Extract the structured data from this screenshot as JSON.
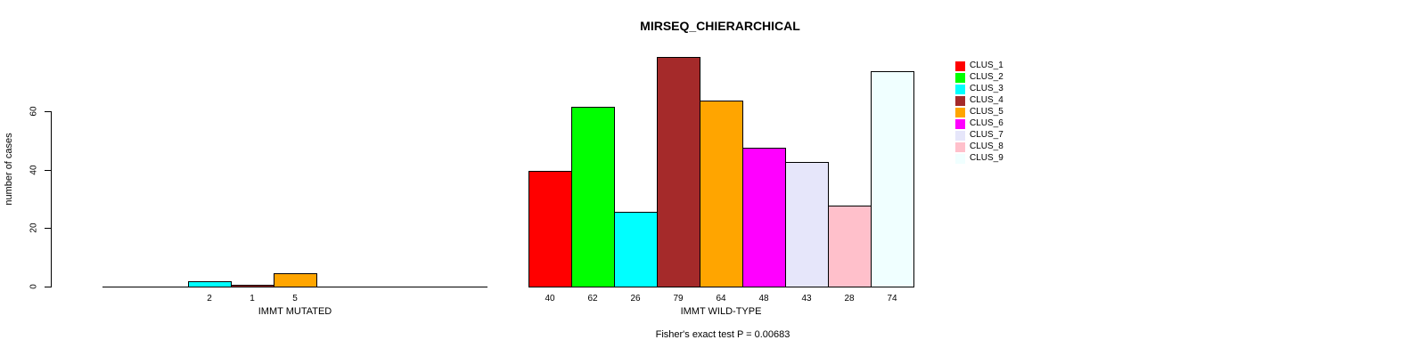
{
  "chart_data": {
    "type": "bar",
    "title": "MIRSEQ_CHIERARCHICAL",
    "xlabel": "",
    "ylabel": "number of cases",
    "yticks": [
      0,
      20,
      40,
      60
    ],
    "ylim": [
      0,
      80
    ],
    "grid": false,
    "legend_position": "right",
    "bar_border_color": "#000000",
    "clusters": [
      {
        "name": "CLUS_1",
        "color": "#ff0000"
      },
      {
        "name": "CLUS_2",
        "color": "#00ff00"
      },
      {
        "name": "CLUS_3",
        "color": "#00ffff"
      },
      {
        "name": "CLUS_4",
        "color": "#a52a2a"
      },
      {
        "name": "CLUS_5",
        "color": "#ffa500"
      },
      {
        "name": "CLUS_6",
        "color": "#ff00ff"
      },
      {
        "name": "CLUS_7",
        "color": "#e6e6fa"
      },
      {
        "name": "CLUS_8",
        "color": "#ffc0cb"
      },
      {
        "name": "CLUS_9",
        "color": "#f0ffff"
      }
    ],
    "categories": [
      "IMMT MUTATED",
      "IMMT WILD-TYPE"
    ],
    "series": [
      {
        "name": "CLUS_1",
        "values": [
          0,
          40
        ]
      },
      {
        "name": "CLUS_2",
        "values": [
          0,
          62
        ]
      },
      {
        "name": "CLUS_3",
        "values": [
          2,
          26
        ]
      },
      {
        "name": "CLUS_4",
        "values": [
          1,
          79
        ]
      },
      {
        "name": "CLUS_5",
        "values": [
          5,
          64
        ]
      },
      {
        "name": "CLUS_6",
        "values": [
          0,
          48
        ]
      },
      {
        "name": "CLUS_7",
        "values": [
          0,
          43
        ]
      },
      {
        "name": "CLUS_8",
        "values": [
          0,
          28
        ]
      },
      {
        "name": "CLUS_9",
        "values": [
          0,
          74
        ]
      }
    ],
    "groups": [
      {
        "label": "IMMT MUTATED",
        "values": [
          0,
          0,
          2,
          1,
          5,
          0,
          0,
          0,
          0
        ]
      },
      {
        "label": "IMMT WILD-TYPE",
        "values": [
          40,
          62,
          26,
          79,
          64,
          48,
          43,
          28,
          74
        ]
      }
    ],
    "annotation": "Fisher's exact test P = 0.00683"
  }
}
